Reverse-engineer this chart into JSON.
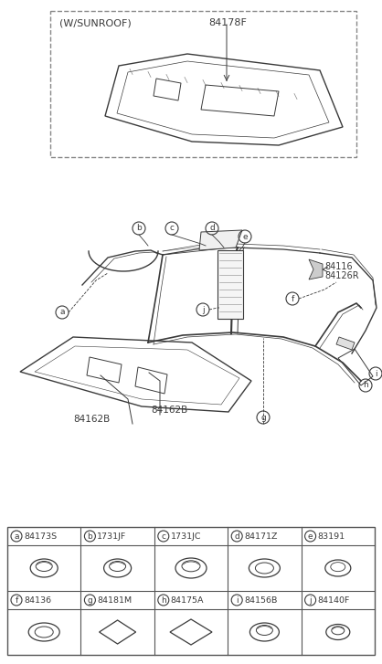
{
  "bg_color": "#ffffff",
  "lc": "#3a3a3a",
  "lc_light": "#888888",
  "sunroof_label": "(W/SUNROOF)",
  "part_84178F": "84178F",
  "part_84162B_a": "84162B",
  "part_84162B_b": "84162B",
  "part_84116": "84116",
  "part_84126R": "84126R",
  "part_labels_row1": [
    "a",
    "b",
    "c",
    "d",
    "e"
  ],
  "part_numbers_row1": [
    "84173S",
    "1731JF",
    "1731JC",
    "84171Z",
    "83191"
  ],
  "part_labels_row2": [
    "f",
    "g",
    "h",
    "i",
    "j"
  ],
  "part_numbers_row2": [
    "84136",
    "84181M",
    "84175A",
    "84156B",
    "84140F"
  ],
  "table_border_color": "#555555"
}
